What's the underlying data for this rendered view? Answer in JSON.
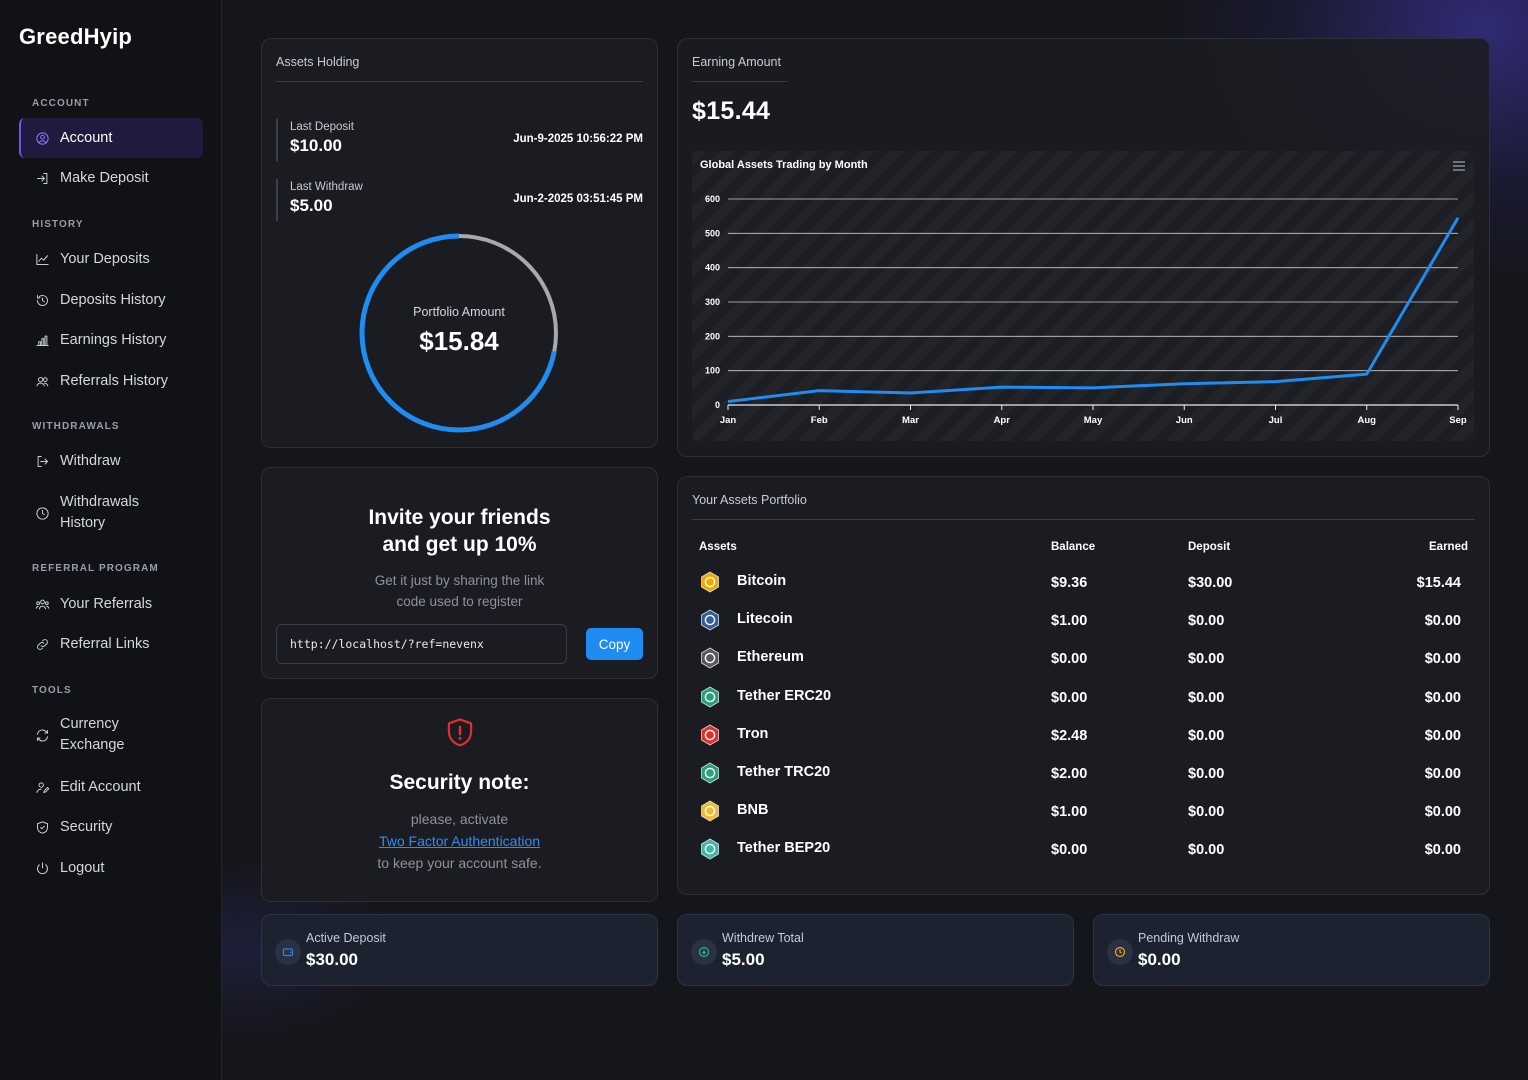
{
  "brand": "GreedHyip",
  "sidebar": {
    "sections": [
      {
        "title": "ACCOUNT",
        "items": [
          {
            "label": "Account",
            "icon": "user-circle-icon",
            "active": true
          },
          {
            "label": "Make Deposit",
            "icon": "login-arrow-icon"
          }
        ]
      },
      {
        "title": "HISTORY",
        "items": [
          {
            "label": "Your Deposits",
            "icon": "trend-chart-icon"
          },
          {
            "label": "Deposits History",
            "icon": "history-icon"
          },
          {
            "label": "Earnings History",
            "icon": "bar-chart-icon"
          },
          {
            "label": "Referrals History",
            "icon": "users-icon"
          }
        ]
      },
      {
        "title": "WITHDRAWALS",
        "items": [
          {
            "label": "Withdraw",
            "icon": "logout-arrow-icon"
          },
          {
            "label": "Withdrawals History",
            "icon": "clock-icon"
          }
        ]
      },
      {
        "title": "REFERRAL PROGRAM",
        "items": [
          {
            "label": "Your Referrals",
            "icon": "group-icon"
          },
          {
            "label": "Referral Links",
            "icon": "link-icon"
          }
        ]
      },
      {
        "title": "TOOLS",
        "items": [
          {
            "label": "Currency Exchange",
            "icon": "exchange-icon"
          },
          {
            "label": "Edit Account",
            "icon": "user-edit-icon"
          },
          {
            "label": "Security",
            "icon": "shield-icon"
          },
          {
            "label": "Logout",
            "icon": "power-icon"
          }
        ]
      }
    ]
  },
  "assets_holding": {
    "title": "Assets Holding",
    "last_deposit": {
      "label": "Last Deposit",
      "amount": "$10.00",
      "date": "Jun-9-2025 10:56:22 PM"
    },
    "last_withdraw": {
      "label": "Last Withdraw",
      "amount": "$5.00",
      "date": "Jun-2-2025 03:51:45 PM"
    },
    "portfolio_label": "Portfolio Amount",
    "portfolio_amount": "$15.84",
    "ring_fraction": 0.72
  },
  "earning": {
    "title": "Earning Amount",
    "amount": "$15.44"
  },
  "chart_data": {
    "type": "line",
    "title": "Global Assets Trading by Month",
    "categories": [
      "Jan",
      "Feb",
      "Mar",
      "Apr",
      "May",
      "Jun",
      "Jul",
      "Aug",
      "Sep"
    ],
    "series": [
      {
        "values": [
          10,
          42,
          35,
          52,
          50,
          62,
          68,
          90,
          545
        ]
      }
    ],
    "yticks": [
      0,
      100,
      200,
      300,
      400,
      500,
      600
    ],
    "ylim": [
      0,
      600
    ],
    "grid": true,
    "color": "#1e8cf0"
  },
  "invite": {
    "heading_line1": "Invite your friends",
    "heading_line2": "and get up 10%",
    "sub_line1": "Get it just by sharing the link",
    "sub_line2": "code used to register",
    "link": "http://localhost/?ref=nevenx",
    "copy_label": "Copy"
  },
  "security": {
    "heading": "Security note:",
    "line1": "please, activate",
    "link": "Two Factor Authentication",
    "line2": "to keep your account safe."
  },
  "portfolio": {
    "title": "Your Assets Portfolio",
    "columns": [
      "Assets",
      "Balance",
      "Deposit",
      "Earned"
    ],
    "rows": [
      {
        "name": "Bitcoin",
        "balance": "$9.36",
        "deposit": "$30.00",
        "earned": "$15.44",
        "icon": "bitcoin-icon",
        "color": "#f2a900"
      },
      {
        "name": "Litecoin",
        "balance": "$1.00",
        "deposit": "$0.00",
        "earned": "$0.00",
        "icon": "litecoin-icon",
        "color": "#345d9d"
      },
      {
        "name": "Ethereum",
        "balance": "$0.00",
        "deposit": "$0.00",
        "earned": "$0.00",
        "icon": "ethereum-icon",
        "color": "#5a5a5e"
      },
      {
        "name": "Tether ERC20",
        "balance": "$0.00",
        "deposit": "$0.00",
        "earned": "$0.00",
        "icon": "tether-icon",
        "color": "#26a17b"
      },
      {
        "name": "Tron",
        "balance": "$2.48",
        "deposit": "$0.00",
        "earned": "$0.00",
        "icon": "tron-icon",
        "color": "#e0302a"
      },
      {
        "name": "Tether TRC20",
        "balance": "$2.00",
        "deposit": "$0.00",
        "earned": "$0.00",
        "icon": "tether-icon",
        "color": "#26a17b"
      },
      {
        "name": "BNB",
        "balance": "$1.00",
        "deposit": "$0.00",
        "earned": "$0.00",
        "icon": "bnb-icon",
        "color": "#f3ba2f"
      },
      {
        "name": "Tether BEP20",
        "balance": "$0.00",
        "deposit": "$0.00",
        "earned": "$0.00",
        "icon": "tether-icon",
        "color": "#3fb8a8"
      }
    ]
  },
  "stats": [
    {
      "label": "Active Deposit",
      "value": "$30.00",
      "icon": "wallet-icon",
      "color": "#2f80ed"
    },
    {
      "label": "Withdrew Total",
      "value": "$5.00",
      "icon": "download-circle-icon",
      "color": "#20b486"
    },
    {
      "label": "Pending Withdraw",
      "value": "$0.00",
      "icon": "clock-icon",
      "color": "#f5a623"
    }
  ]
}
